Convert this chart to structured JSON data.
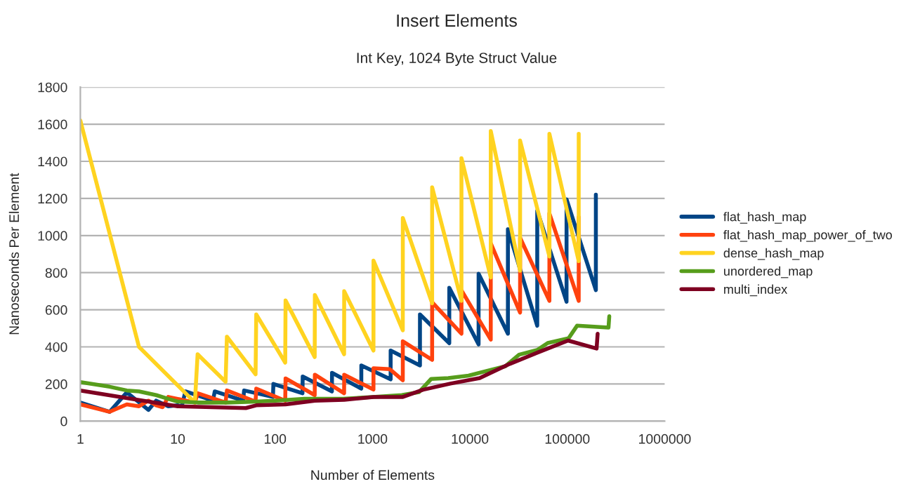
{
  "chart_data": {
    "type": "line",
    "title": "Insert Elements",
    "subtitle": "Int Key, 1024 Byte Struct Value",
    "xlabel": "Number of Elements",
    "ylabel": "Nanoseconds Per Element",
    "log": "x",
    "xlim": [
      1,
      1000000
    ],
    "xticks": [
      1,
      10,
      100,
      1000,
      10000,
      100000,
      1000000
    ],
    "ylim": [
      0,
      1800
    ],
    "yticks": [
      0,
      200,
      400,
      600,
      800,
      1000,
      1200,
      1400,
      1600,
      1800
    ],
    "grid": "y",
    "legend": "right",
    "marker": "none",
    "line_style": "solid",
    "series": [
      {
        "name": "flat_hash_map",
        "color": "#004586",
        "x": [
          1,
          2,
          3,
          5,
          6,
          8,
          10,
          11,
          12,
          23,
          24,
          47,
          48,
          95,
          96,
          191,
          192,
          383,
          384,
          767,
          768,
          1535,
          1536,
          3071,
          3072,
          6143,
          6144,
          12287,
          12288,
          24575,
          24576,
          49151,
          49152,
          98303,
          98304,
          196607,
          196608
        ],
        "values": [
          100,
          50,
          155,
          60,
          110,
          80,
          85,
          80,
          160,
          110,
          160,
          110,
          165,
          130,
          200,
          150,
          240,
          160,
          260,
          175,
          300,
          225,
          380,
          300,
          575,
          420,
          718,
          413,
          794,
          471,
          1034,
          514,
          1134,
          643,
          1195,
          706,
          1220
        ]
      },
      {
        "name": "flat_hash_map_power_of_two",
        "color": "#ff420e",
        "x": [
          1,
          2,
          3,
          4,
          5,
          6,
          7,
          8,
          15,
          16,
          31,
          32,
          63,
          64,
          127,
          128,
          255,
          256,
          511,
          512,
          1023,
          1024,
          1500,
          2047,
          2048,
          4095,
          4096,
          8191,
          8192,
          16383,
          16384,
          32767,
          32768,
          65535,
          65536,
          131071,
          131072
        ],
        "values": [
          90,
          50,
          90,
          80,
          110,
          85,
          75,
          130,
          100,
          150,
          100,
          165,
          105,
          175,
          110,
          230,
          140,
          250,
          150,
          250,
          170,
          285,
          280,
          220,
          430,
          330,
          640,
          471,
          705,
          439,
          958,
          585,
          988,
          648,
          1119,
          648,
          1099
        ]
      },
      {
        "name": "dense_hash_map",
        "color": "#ffd320",
        "x": [
          1,
          4,
          15,
          16,
          31,
          32,
          63,
          64,
          127,
          128,
          255,
          256,
          511,
          512,
          1023,
          1024,
          2047,
          2048,
          4095,
          4096,
          8191,
          8192,
          16383,
          16384,
          32767,
          32768,
          65535,
          65536,
          131071,
          131072
        ],
        "values": [
          1620,
          400,
          100,
          360,
          212,
          455,
          252,
          575,
          315,
          650,
          345,
          680,
          360,
          700,
          380,
          865,
          489,
          1095,
          635,
          1260,
          648,
          1417,
          774,
          1563,
          810,
          1512,
          887,
          1548,
          862,
          1548
        ]
      },
      {
        "name": "unordered_map",
        "color": "#579d1c",
        "x": [
          1,
          2,
          3,
          4,
          6,
          8,
          10,
          16,
          32,
          64,
          100,
          200,
          500,
          1000,
          2000,
          3000,
          4000,
          6000,
          9700,
          14800,
          23000,
          32000,
          49000,
          63000,
          103000,
          126000,
          265000,
          270000
        ],
        "values": [
          210,
          185,
          165,
          160,
          140,
          120,
          105,
          100,
          100,
          105,
          110,
          120,
          120,
          130,
          140,
          156,
          227,
          232,
          245,
          270,
          295,
          358,
          383,
          421,
          446,
          514,
          504,
          565
        ]
      },
      {
        "name": "multi_index",
        "color": "#7e0021",
        "x": [
          1,
          10,
          50,
          64,
          128,
          256,
          512,
          1024,
          2048,
          3300,
          6300,
          12600,
          25600,
          50000,
          102000,
          200000,
          205000
        ],
        "values": [
          165,
          80,
          70,
          85,
          90,
          110,
          115,
          130,
          130,
          169,
          202,
          232,
          308,
          370,
          434,
          391,
          471
        ]
      }
    ]
  }
}
